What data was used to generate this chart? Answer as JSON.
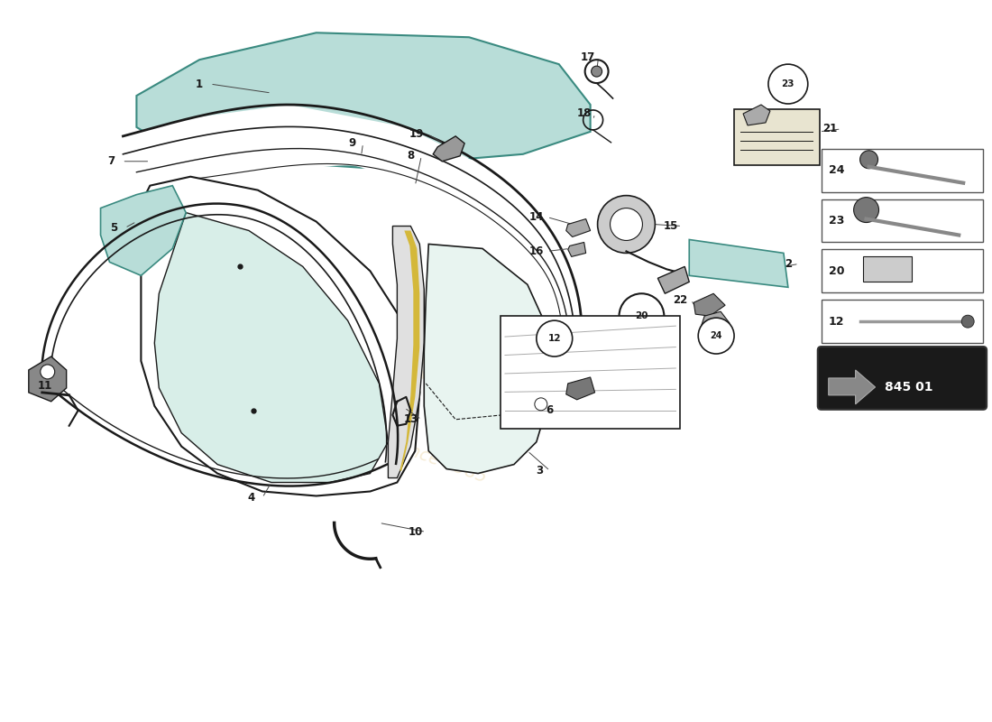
{
  "bg": "#ffffff",
  "lc": "#1a1a1a",
  "gc": "#b8ddd8",
  "gec": "#3a8a80",
  "wm_color1": "#d4a843",
  "wm_color2": "#c8a030",
  "part_num": "845 01"
}
